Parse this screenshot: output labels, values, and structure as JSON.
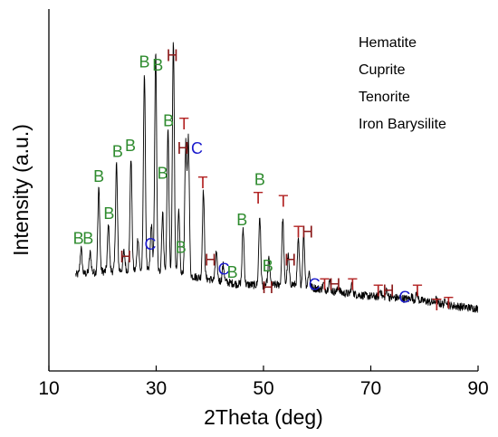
{
  "chart_data": {
    "type": "line",
    "xlabel": "2Theta (deg)",
    "ylabel": "Intensity (a.u.)",
    "xlim": [
      10,
      90
    ],
    "xticks": [
      "10",
      "30",
      "50",
      "70",
      "90"
    ],
    "ylim": [
      0,
      100
    ],
    "yticks_shown": false,
    "grid": false,
    "legend_position": "top-right",
    "legend": [
      "Hematite",
      "Cuprite",
      "Tenorite",
      "Iron Barysilite"
    ],
    "colors": {
      "B": "#2e8b2e",
      "H": "#8b1a1a",
      "C": "#1a1acc",
      "T": "#b22222"
    },
    "baseline": [
      [
        15,
        20
      ],
      [
        20,
        21
      ],
      [
        25,
        21.5
      ],
      [
        30,
        21
      ],
      [
        35,
        20
      ],
      [
        40,
        18.5
      ],
      [
        45,
        17
      ],
      [
        50,
        16.5
      ],
      [
        55,
        17
      ],
      [
        60,
        15.5
      ],
      [
        65,
        14
      ],
      [
        70,
        13
      ],
      [
        75,
        12.5
      ],
      [
        80,
        11.5
      ],
      [
        85,
        10
      ],
      [
        90,
        9
      ]
    ],
    "peaks": [
      {
        "x": 16.0,
        "y": 28.5
      },
      {
        "x": 17.7,
        "y": 27
      },
      {
        "x": 19.3,
        "y": 48
      },
      {
        "x": 21.1,
        "y": 36
      },
      {
        "x": 22.6,
        "y": 56
      },
      {
        "x": 24.0,
        "y": 27.5
      },
      {
        "x": 25.3,
        "y": 58
      },
      {
        "x": 26.6,
        "y": 32
      },
      {
        "x": 27.8,
        "y": 85
      },
      {
        "x": 29.1,
        "y": 36
      },
      {
        "x": 29.9,
        "y": 92
      },
      {
        "x": 31.2,
        "y": 40
      },
      {
        "x": 32.2,
        "y": 67
      },
      {
        "x": 33.2,
        "y": 95
      },
      {
        "x": 34.2,
        "y": 40
      },
      {
        "x": 35.5,
        "y": 62
      },
      {
        "x": 36.0,
        "y": 64
      },
      {
        "x": 38.8,
        "y": 47
      },
      {
        "x": 41.2,
        "y": 27
      },
      {
        "x": 42.5,
        "y": 23
      },
      {
        "x": 46.2,
        "y": 35
      },
      {
        "x": 49.3,
        "y": 39
      },
      {
        "x": 51.0,
        "y": 25
      },
      {
        "x": 53.6,
        "y": 38
      },
      {
        "x": 54.6,
        "y": 26
      },
      {
        "x": 56.5,
        "y": 31
      },
      {
        "x": 57.5,
        "y": 33
      },
      {
        "x": 58.5,
        "y": 21
      },
      {
        "x": 61.2,
        "y": 17
      },
      {
        "x": 62.3,
        "y": 18
      },
      {
        "x": 64.0,
        "y": 16
      },
      {
        "x": 66.5,
        "y": 17
      },
      {
        "x": 71.8,
        "y": 15
      },
      {
        "x": 73.0,
        "y": 15
      },
      {
        "x": 77.6,
        "y": 13
      },
      {
        "x": 78.6,
        "y": 14
      },
      {
        "x": 82.2,
        "y": 12
      },
      {
        "x": 84.0,
        "y": 12
      }
    ],
    "annotations": [
      {
        "text": "B",
        "x": 15.5,
        "y": 30
      },
      {
        "text": "B",
        "x": 17.3,
        "y": 30
      },
      {
        "text": "B",
        "x": 19.3,
        "y": 50
      },
      {
        "text": "B",
        "x": 21.2,
        "y": 38
      },
      {
        "text": "B",
        "x": 22.8,
        "y": 58
      },
      {
        "text": "B",
        "x": 25.2,
        "y": 60
      },
      {
        "text": "H",
        "x": 24.3,
        "y": 24
      },
      {
        "text": "C",
        "x": 28.9,
        "y": 28
      },
      {
        "text": "B",
        "x": 27.8,
        "y": 87
      },
      {
        "text": "B",
        "x": 30.3,
        "y": 86
      },
      {
        "text": "H",
        "x": 33.0,
        "y": 89
      },
      {
        "text": "B",
        "x": 31.2,
        "y": 51
      },
      {
        "text": "B",
        "x": 32.3,
        "y": 68
      },
      {
        "text": "T",
        "x": 35.2,
        "y": 67
      },
      {
        "text": "H",
        "x": 35.0,
        "y": 59
      },
      {
        "text": "C",
        "x": 37.6,
        "y": 59
      },
      {
        "text": "B",
        "x": 34.6,
        "y": 27
      },
      {
        "text": "T",
        "x": 38.7,
        "y": 48
      },
      {
        "text": "H",
        "x": 40.1,
        "y": 23
      },
      {
        "text": "C",
        "x": 42.6,
        "y": 20
      },
      {
        "text": "B",
        "x": 44.2,
        "y": 19
      },
      {
        "text": "B",
        "x": 46.0,
        "y": 36
      },
      {
        "text": "B",
        "x": 49.3,
        "y": 49
      },
      {
        "text": "T",
        "x": 49.0,
        "y": 43
      },
      {
        "text": "B",
        "x": 50.8,
        "y": 21
      },
      {
        "text": "H",
        "x": 50.8,
        "y": 14
      },
      {
        "text": "T",
        "x": 53.7,
        "y": 42
      },
      {
        "text": "H",
        "x": 55.0,
        "y": 23
      },
      {
        "text": "T",
        "x": 56.5,
        "y": 32
      },
      {
        "text": "H",
        "x": 58.2,
        "y": 32
      },
      {
        "text": "C",
        "x": 59.5,
        "y": 15
      },
      {
        "text": "T",
        "x": 61.4,
        "y": 15
      },
      {
        "text": "H",
        "x": 63.3,
        "y": 15
      },
      {
        "text": "T",
        "x": 66.6,
        "y": 15
      },
      {
        "text": "T",
        "x": 71.4,
        "y": 13
      },
      {
        "text": "H",
        "x": 73.3,
        "y": 13
      },
      {
        "text": "C",
        "x": 76.3,
        "y": 11
      },
      {
        "text": "T",
        "x": 78.7,
        "y": 13
      },
      {
        "text": "T",
        "x": 82.3,
        "y": 8.5
      },
      {
        "text": "T",
        "x": 84.5,
        "y": 9
      }
    ]
  }
}
